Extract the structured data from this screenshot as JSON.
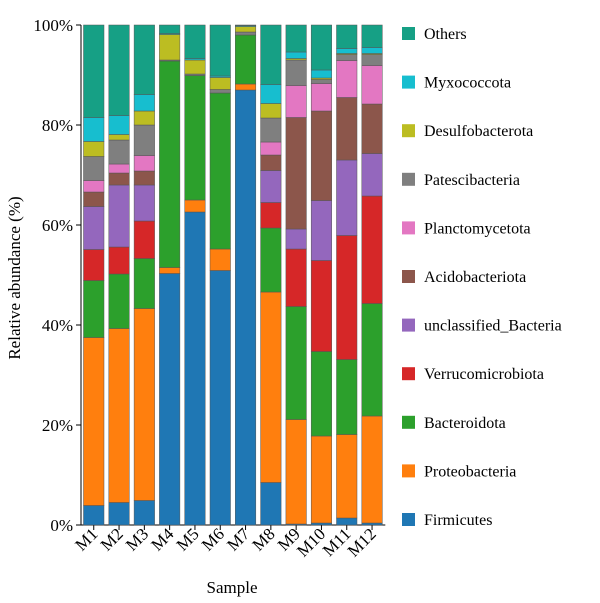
{
  "chart_data": {
    "type": "bar",
    "stacked": true,
    "categories": [
      "M1",
      "M2",
      "M3",
      "M4",
      "M5",
      "M6",
      "M7",
      "M8",
      "M9",
      "M10",
      "M11",
      "M12"
    ],
    "xlabel": "Sample",
    "ylabel": "Relative abundance (%)",
    "ylim": [
      0,
      100
    ],
    "yticks": [
      "0%",
      "20%",
      "40%",
      "60%",
      "80%",
      "100%"
    ],
    "legend_position": "right",
    "series": [
      {
        "name": "Firmicutes",
        "color": "#1f77b4",
        "values": [
          3.9,
          4.5,
          4.9,
          50.3,
          62.6,
          50.9,
          87.0,
          8.5,
          0.2,
          0.4,
          1.4,
          0.4
        ]
      },
      {
        "name": "Proteobacteria",
        "color": "#ff7f0e",
        "values": [
          33.6,
          34.8,
          38.4,
          1.2,
          2.4,
          4.3,
          1.2,
          38.1,
          20.9,
          17.4,
          16.7,
          21.4
        ]
      },
      {
        "name": "Bacteroidota",
        "color": "#2ca02c",
        "values": [
          11.4,
          10.9,
          10.0,
          41.3,
          24.9,
          31.2,
          9.8,
          12.8,
          22.6,
          16.9,
          15.0,
          22.5
        ]
      },
      {
        "name": "Verrucomicrobiota",
        "color": "#d62728",
        "values": [
          6.2,
          5.4,
          7.5,
          0,
          0,
          0,
          0,
          5.1,
          11.5,
          18.2,
          24.8,
          21.5
        ]
      },
      {
        "name": "unclassified_Bacteria",
        "color": "#9467bd",
        "values": [
          8.6,
          12.4,
          7.2,
          0,
          0,
          0,
          0,
          6.4,
          4.0,
          12.0,
          15.1,
          8.5
        ]
      },
      {
        "name": "Acidobacteriota",
        "color": "#8c564b",
        "values": [
          2.9,
          2.4,
          2.8,
          0,
          0,
          0,
          0,
          3.1,
          22.3,
          17.9,
          12.5,
          9.9
        ]
      },
      {
        "name": "Planctomycetota",
        "color": "#e377c2",
        "values": [
          2.3,
          1.8,
          3.1,
          0,
          0,
          0,
          0,
          2.6,
          6.4,
          5.5,
          7.4,
          7.7
        ]
      },
      {
        "name": "Patescibacteria",
        "color": "#7f7f7f",
        "values": [
          4.8,
          4.8,
          6.1,
          0.2,
          0.3,
          0.7,
          0.6,
          4.8,
          5.1,
          0.8,
          1.2,
          2.2
        ]
      },
      {
        "name": "Desulfobacterota",
        "color": "#bcbd22",
        "values": [
          3.0,
          1.1,
          2.8,
          5.1,
          2.8,
          2.4,
          1.1,
          2.9,
          0.3,
          0.3,
          0.2,
          0.2
        ]
      },
      {
        "name": "Myxococcota",
        "color": "#17becf",
        "values": [
          4.8,
          3.8,
          3.3,
          0.2,
          0.3,
          0.3,
          0.2,
          3.8,
          1.3,
          1.6,
          1.0,
          1.2
        ]
      },
      {
        "name": "Others",
        "color": "#16a085",
        "values": [
          18.5,
          18.1,
          13.9,
          1.7,
          6.7,
          10.2,
          0.1,
          11.9,
          5.4,
          9.0,
          4.7,
          4.5
        ]
      }
    ],
    "grid": false
  }
}
